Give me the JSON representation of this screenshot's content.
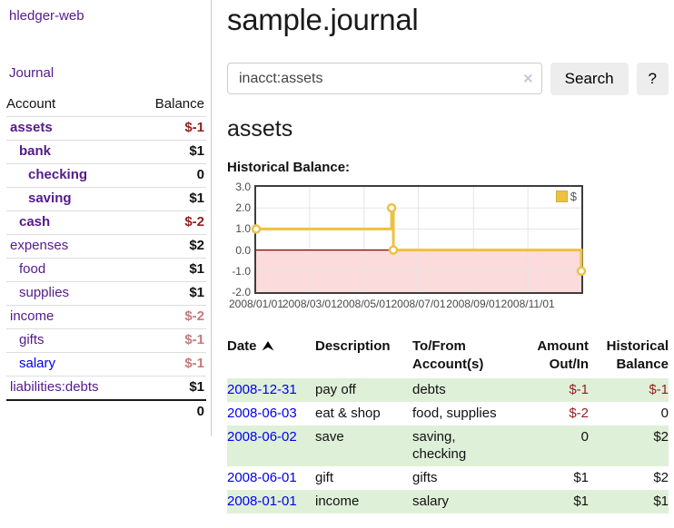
{
  "app_title": "hledger-web",
  "sidebar": {
    "journal_link": "Journal",
    "accounts_table": {
      "headers": {
        "account": "Account",
        "balance": "Balance"
      },
      "rows": [
        {
          "name": "assets",
          "balance": "$-1",
          "depth": 1,
          "current": true,
          "balance_style": "neg-strong"
        },
        {
          "name": "bank",
          "balance": "$1",
          "depth": 2,
          "current": true,
          "balance_style": "pos"
        },
        {
          "name": "checking",
          "balance": "0",
          "depth": 3,
          "current": true,
          "balance_style": "pos"
        },
        {
          "name": "saving",
          "balance": "$1",
          "depth": 3,
          "current": true,
          "balance_style": "pos"
        },
        {
          "name": "cash",
          "balance": "$-2",
          "depth": 2,
          "current": true,
          "balance_style": "neg-strong"
        },
        {
          "name": "expenses",
          "balance": "$2",
          "depth": 1,
          "current": false,
          "balance_style": "pos"
        },
        {
          "name": "food",
          "balance": "$1",
          "depth": 2,
          "current": false,
          "balance_style": "pos"
        },
        {
          "name": "supplies",
          "balance": "$1",
          "depth": 2,
          "current": false,
          "balance_style": "pos"
        },
        {
          "name": "income",
          "balance": "$-2",
          "depth": 1,
          "current": false,
          "balance_style": "neg-soft"
        },
        {
          "name": "gifts",
          "balance": "$-1",
          "depth": 2,
          "current": false,
          "balance_style": "neg-soft"
        },
        {
          "name": "salary",
          "balance": "$-1",
          "depth": 2,
          "current": false,
          "balance_style": "neg-soft",
          "link_style": "unvisited"
        },
        {
          "name": "liabilities:debts",
          "balance": "$1",
          "depth": 1,
          "current": false,
          "balance_style": "pos"
        }
      ],
      "total": "0"
    }
  },
  "main": {
    "title": "sample.journal",
    "search": {
      "value": "inacct:assets",
      "clear_label": "×",
      "search_button": "Search",
      "help_button": "?"
    },
    "account_heading": "assets",
    "chart_title": "Historical Balance:"
  },
  "chart_data": {
    "type": "line",
    "title": "Historical Balance:",
    "ylim": [
      -2.0,
      3.0
    ],
    "y_ticks": [
      "3.0",
      "2.0",
      "1.0",
      "0.0",
      "-1.0",
      "-2.0"
    ],
    "x_ticks": [
      "2008/01/01",
      "2008/03/01",
      "2008/05/01",
      "2008/07/01",
      "2008/09/01",
      "2008/11/01"
    ],
    "x_tick_days": [
      0,
      60,
      121,
      182,
      244,
      305
    ],
    "total_days": 365,
    "grid": true,
    "grid_color": "#e5e5e5",
    "negative_region_fill": "#fbdbdb",
    "zero_line_color": "#8b0000",
    "series": [
      {
        "name": "$",
        "color": "#EDC240",
        "step": true,
        "points": [
          {
            "date": "2008-01-01",
            "day": 0,
            "value": 1
          },
          {
            "date": "2008-06-01",
            "day": 152,
            "value": 2
          },
          {
            "date": "2008-06-03",
            "day": 154,
            "value": 0
          },
          {
            "date": "2008-12-31",
            "day": 365,
            "value": -1
          }
        ]
      }
    ],
    "legend": {
      "label": "$",
      "swatch_color": "#EDC240",
      "position": "top-right"
    }
  },
  "register": {
    "columns": [
      {
        "key": "date",
        "label": "Date",
        "sort": "asc",
        "align": "left"
      },
      {
        "key": "description",
        "label": "Description",
        "align": "left"
      },
      {
        "key": "accounts",
        "label": "To/From Account(s)",
        "align": "left"
      },
      {
        "key": "amount",
        "label": "Amount Out/In",
        "align": "right"
      },
      {
        "key": "balance",
        "label": "Historical Balance",
        "align": "right"
      }
    ],
    "rows": [
      {
        "date": "2008-12-31",
        "description": "pay off",
        "accounts": "debts",
        "amount": "$-1",
        "amount_negative": true,
        "balance": "$-1",
        "balance_negative": true,
        "highlight": true
      },
      {
        "date": "2008-06-03",
        "description": "eat & shop",
        "accounts": "food, supplies",
        "amount": "$-2",
        "amount_negative": true,
        "balance": "0",
        "balance_negative": false,
        "highlight": false
      },
      {
        "date": "2008-06-02",
        "description": "save",
        "accounts": "saving, checking",
        "amount": "0",
        "amount_negative": false,
        "balance": "$2",
        "balance_negative": false,
        "highlight": true
      },
      {
        "date": "2008-06-01",
        "description": "gift",
        "accounts": "gifts",
        "amount": "$1",
        "amount_negative": false,
        "balance": "$2",
        "balance_negative": false,
        "highlight": false
      },
      {
        "date": "2008-01-01",
        "description": "income",
        "accounts": "salary",
        "amount": "$1",
        "amount_negative": false,
        "balance": "$1",
        "balance_negative": false,
        "highlight": true
      }
    ]
  }
}
